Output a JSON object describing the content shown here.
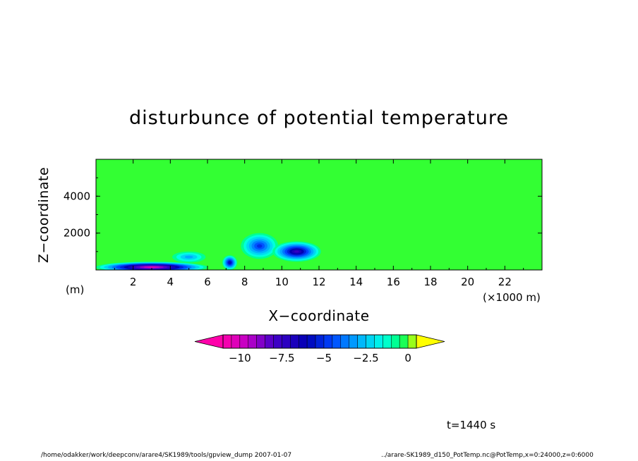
{
  "chart_data": {
    "type": "heatmap",
    "title": "disturbunce of potential temperature",
    "xlabel": "X−coordinate",
    "ylabel": "Z−coordinate",
    "x_unit": "(×1000 m)",
    "y_unit": "(m)",
    "xlim": [
      0,
      24
    ],
    "ylim": [
      0,
      6000
    ],
    "x_ticks": [
      "2",
      "4",
      "6",
      "8",
      "10",
      "12",
      "14",
      "16",
      "18",
      "20",
      "22"
    ],
    "y_ticks": [
      "2000",
      "4000"
    ],
    "colorbar": {
      "min": -11,
      "max": 0.5,
      "step": 0.5,
      "extend": "both",
      "tick_values": [
        -10,
        -7.5,
        -5,
        -2.5,
        0
      ],
      "tick_labels": [
        "−10",
        "−7.5",
        "−5",
        "−2.5",
        "0"
      ]
    },
    "background_value": 0,
    "features": [
      {
        "kind": "cold pool",
        "x": 3.0,
        "z": 150,
        "rx": 3.0,
        "rz": 300,
        "min_value": -10.5
      },
      {
        "kind": "cold cell",
        "x": 7.2,
        "z": 400,
        "rx": 0.4,
        "rz": 400,
        "min_value": -6.5
      },
      {
        "kind": "cold cell",
        "x": 8.8,
        "z": 1300,
        "rx": 1.0,
        "rz": 700,
        "min_value": -5.0
      },
      {
        "kind": "cold cell",
        "x": 10.8,
        "z": 1000,
        "rx": 1.3,
        "rz": 550,
        "min_value": -7.5
      },
      {
        "kind": "cold cell",
        "x": 5.0,
        "z": 700,
        "rx": 0.9,
        "rz": 300,
        "min_value": -3.0
      }
    ]
  },
  "time_label": "t=1440 s",
  "footer_left": "/home/odakker/work/deepconv/arare4/SK1989/tools/gpview_dump  2007-01-07",
  "footer_right": "../arare-SK1989_d150_PotTemp.nc@PotTemp,x=0:24000,z=0:6000",
  "colors": {
    "background_field": "#33ff33",
    "outline": "#000000"
  }
}
